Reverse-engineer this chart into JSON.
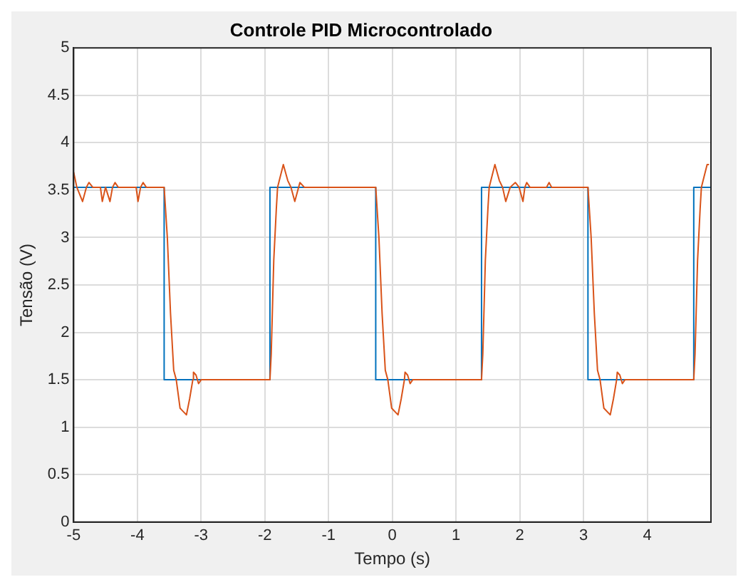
{
  "chart_data": {
    "type": "line",
    "title": "Controle PID Microcontrolado",
    "xlabel": "Tempo (s)",
    "ylabel": "Tensão (V)",
    "xlim": [
      -5,
      5
    ],
    "xticks": [
      -5,
      -4,
      -3,
      -2,
      -1,
      0,
      1,
      2,
      3,
      4
    ],
    "ylim": [
      0,
      5
    ],
    "yticks": [
      0,
      0.5,
      1,
      1.5,
      2,
      2.5,
      3,
      3.5,
      4,
      4.5,
      5
    ],
    "grid": true,
    "legend": false,
    "marker": "none",
    "line_style": "solid",
    "series": [
      {
        "type": "step",
        "color": "#0072bd",
        "x": [
          -5,
          -3.58,
          -1.92,
          -0.26,
          1.4,
          3.07,
          4.73,
          5
        ],
        "values": [
          3.53,
          1.5,
          3.53,
          1.5,
          3.53,
          1.5,
          3.53,
          3.53
        ]
      },
      {
        "type": "line",
        "color": "#d95319",
        "x": [
          -5,
          -4.95,
          -4.86,
          -4.8,
          -4.76,
          -4.7,
          -4.58,
          -4.55,
          -4.5,
          -4.43,
          -4.39,
          -4.35,
          -4.3,
          -4.02,
          -3.99,
          -3.95,
          -3.91,
          -3.86,
          -3.58,
          -3.53,
          -3.48,
          -3.43,
          -3.39,
          -3.33,
          -3.23,
          -3.18,
          -3.13,
          -3.12,
          -3.08,
          -3.04,
          -3.0,
          -1.92,
          -1.9,
          -1.86,
          -1.82,
          -1.8,
          -1.71,
          -1.64,
          -1.59,
          -1.53,
          -1.45,
          -1.38,
          -0.26,
          -0.21,
          -0.16,
          -0.11,
          -0.07,
          -0.01,
          0.09,
          0.14,
          0.19,
          0.2,
          0.24,
          0.28,
          0.32,
          1.4,
          1.42,
          1.46,
          1.5,
          1.52,
          1.61,
          1.68,
          1.73,
          1.78,
          1.85,
          1.93,
          1.99,
          2.05,
          2.08,
          2.11,
          2.16,
          2.42,
          2.46,
          2.5,
          3.07,
          3.12,
          3.17,
          3.22,
          3.26,
          3.32,
          3.42,
          3.47,
          3.52,
          3.53,
          3.57,
          3.61,
          3.65,
          4.73,
          4.75,
          4.79,
          4.83,
          4.85,
          4.94,
          4.97
        ],
        "values": [
          3.69,
          3.53,
          3.38,
          3.53,
          3.58,
          3.53,
          3.53,
          3.38,
          3.53,
          3.38,
          3.53,
          3.58,
          3.53,
          3.53,
          3.38,
          3.53,
          3.58,
          3.53,
          3.53,
          3.0,
          2.2,
          1.6,
          1.5,
          1.2,
          1.13,
          1.3,
          1.5,
          1.58,
          1.55,
          1.46,
          1.5,
          1.5,
          1.77,
          2.76,
          3.3,
          3.53,
          3.77,
          3.6,
          3.53,
          3.38,
          3.58,
          3.53,
          3.53,
          3.0,
          2.2,
          1.6,
          1.5,
          1.2,
          1.13,
          1.3,
          1.5,
          1.58,
          1.55,
          1.46,
          1.5,
          1.5,
          1.77,
          2.76,
          3.3,
          3.53,
          3.77,
          3.6,
          3.53,
          3.38,
          3.53,
          3.58,
          3.53,
          3.38,
          3.53,
          3.58,
          3.53,
          3.53,
          3.58,
          3.53,
          3.53,
          3.0,
          2.2,
          1.6,
          1.5,
          1.2,
          1.13,
          1.3,
          1.5,
          1.58,
          1.55,
          1.46,
          1.5,
          1.5,
          1.77,
          2.76,
          3.3,
          3.53,
          3.77,
          3.77
        ]
      }
    ]
  }
}
